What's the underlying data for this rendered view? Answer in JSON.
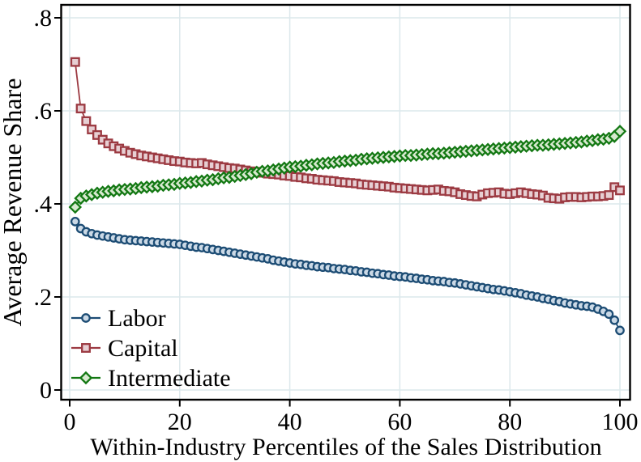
{
  "figure": {
    "background": "#ffffff",
    "border_color": "#000000",
    "grid_color": "#DCE8EC",
    "text_color": "#000000"
  },
  "chart_data": {
    "type": "line",
    "title": "",
    "xlabel": "Within-Industry Percentiles of the Sales Distribution",
    "ylabel": "Average Revenue Share",
    "xlim": [
      0,
      100
    ],
    "ylim": [
      0,
      0.8
    ],
    "grid": true,
    "legend_position": "lower-left-inside",
    "x_ticks": [
      {
        "value": 0,
        "label": "0"
      },
      {
        "value": 20,
        "label": "20"
      },
      {
        "value": 40,
        "label": "40"
      },
      {
        "value": 60,
        "label": "60"
      },
      {
        "value": 80,
        "label": "80"
      },
      {
        "value": 100,
        "label": "100"
      }
    ],
    "y_ticks": [
      {
        "value": 0.8,
        "label": ".8"
      },
      {
        "value": 0.6,
        "label": ".6"
      },
      {
        "value": 0.4,
        "label": ".4"
      },
      {
        "value": 0.2,
        "label": ".2"
      },
      {
        "value": 0,
        "label": "0"
      }
    ],
    "x": [
      1,
      2,
      3,
      4,
      5,
      6,
      7,
      8,
      9,
      10,
      11,
      12,
      13,
      14,
      15,
      16,
      17,
      18,
      19,
      20,
      21,
      22,
      23,
      24,
      25,
      26,
      27,
      28,
      29,
      30,
      31,
      32,
      33,
      34,
      35,
      36,
      37,
      38,
      39,
      40,
      41,
      42,
      43,
      44,
      45,
      46,
      47,
      48,
      49,
      50,
      51,
      52,
      53,
      54,
      55,
      56,
      57,
      58,
      59,
      60,
      61,
      62,
      63,
      64,
      65,
      66,
      67,
      68,
      69,
      70,
      71,
      72,
      73,
      74,
      75,
      76,
      77,
      78,
      79,
      80,
      81,
      82,
      83,
      84,
      85,
      86,
      87,
      88,
      89,
      90,
      91,
      92,
      93,
      94,
      95,
      96,
      97,
      98,
      99,
      100
    ],
    "series": [
      {
        "name": "Labor",
        "marker": "circle",
        "color": "#1C4C74",
        "fill": "#CBD9E6",
        "values": [
          0.362,
          0.347,
          0.34,
          0.336,
          0.333,
          0.331,
          0.329,
          0.327,
          0.325,
          0.323,
          0.322,
          0.321,
          0.32,
          0.319,
          0.318,
          0.317,
          0.316,
          0.315,
          0.314,
          0.313,
          0.311,
          0.309,
          0.307,
          0.306,
          0.304,
          0.302,
          0.3,
          0.298,
          0.296,
          0.294,
          0.292,
          0.29,
          0.288,
          0.286,
          0.284,
          0.282,
          0.279,
          0.277,
          0.275,
          0.273,
          0.271,
          0.27,
          0.268,
          0.267,
          0.265,
          0.264,
          0.263,
          0.261,
          0.26,
          0.259,
          0.257,
          0.256,
          0.254,
          0.253,
          0.251,
          0.25,
          0.248,
          0.247,
          0.245,
          0.244,
          0.243,
          0.241,
          0.24,
          0.238,
          0.237,
          0.235,
          0.234,
          0.233,
          0.231,
          0.23,
          0.228,
          0.226,
          0.224,
          0.222,
          0.22,
          0.218,
          0.216,
          0.215,
          0.213,
          0.211,
          0.209,
          0.207,
          0.204,
          0.202,
          0.2,
          0.197,
          0.195,
          0.192,
          0.19,
          0.187,
          0.185,
          0.183,
          0.181,
          0.18,
          0.178,
          0.174,
          0.169,
          0.163,
          0.15,
          0.128
        ]
      },
      {
        "name": "Capital",
        "marker": "square",
        "color": "#9C3A42",
        "fill": "#E7CFD3",
        "values": [
          0.705,
          0.605,
          0.578,
          0.56,
          0.548,
          0.538,
          0.53,
          0.524,
          0.519,
          0.514,
          0.51,
          0.507,
          0.504,
          0.502,
          0.5,
          0.498,
          0.496,
          0.494,
          0.492,
          0.491,
          0.489,
          0.488,
          0.487,
          0.488,
          0.485,
          0.483,
          0.481,
          0.479,
          0.477,
          0.476,
          0.474,
          0.472,
          0.47,
          0.469,
          0.467,
          0.465,
          0.464,
          0.463,
          0.461,
          0.46,
          0.458,
          0.457,
          0.455,
          0.454,
          0.452,
          0.451,
          0.45,
          0.449,
          0.447,
          0.446,
          0.445,
          0.444,
          0.442,
          0.441,
          0.44,
          0.439,
          0.438,
          0.437,
          0.435,
          0.434,
          0.433,
          0.432,
          0.431,
          0.43,
          0.429,
          0.43,
          0.431,
          0.428,
          0.427,
          0.425,
          0.421,
          0.419,
          0.417,
          0.416,
          0.42,
          0.423,
          0.424,
          0.425,
          0.422,
          0.421,
          0.423,
          0.425,
          0.423,
          0.421,
          0.42,
          0.418,
          0.413,
          0.412,
          0.411,
          0.414,
          0.415,
          0.415,
          0.414,
          0.415,
          0.416,
          0.416,
          0.417,
          0.419,
          0.436,
          0.429
        ]
      },
      {
        "name": "Intermediate",
        "marker": "diamond",
        "color": "#137813",
        "fill": "#D7E9CF",
        "values": [
          0.393,
          0.412,
          0.417,
          0.42,
          0.423,
          0.425,
          0.427,
          0.428,
          0.43,
          0.431,
          0.432,
          0.433,
          0.435,
          0.436,
          0.437,
          0.438,
          0.44,
          0.441,
          0.442,
          0.444,
          0.445,
          0.446,
          0.448,
          0.449,
          0.451,
          0.452,
          0.454,
          0.456,
          0.457,
          0.459,
          0.461,
          0.463,
          0.465,
          0.468,
          0.47,
          0.471,
          0.473,
          0.475,
          0.477,
          0.479,
          0.48,
          0.481,
          0.483,
          0.484,
          0.486,
          0.487,
          0.488,
          0.489,
          0.491,
          0.492,
          0.493,
          0.494,
          0.496,
          0.497,
          0.498,
          0.499,
          0.5,
          0.501,
          0.502,
          0.503,
          0.504,
          0.504,
          0.505,
          0.506,
          0.507,
          0.508,
          0.508,
          0.509,
          0.51,
          0.511,
          0.512,
          0.513,
          0.514,
          0.515,
          0.516,
          0.517,
          0.518,
          0.519,
          0.52,
          0.521,
          0.522,
          0.523,
          0.524,
          0.525,
          0.526,
          0.526,
          0.527,
          0.528,
          0.529,
          0.53,
          0.531,
          0.532,
          0.533,
          0.535,
          0.536,
          0.538,
          0.539,
          0.541,
          0.545,
          0.556
        ]
      }
    ]
  }
}
